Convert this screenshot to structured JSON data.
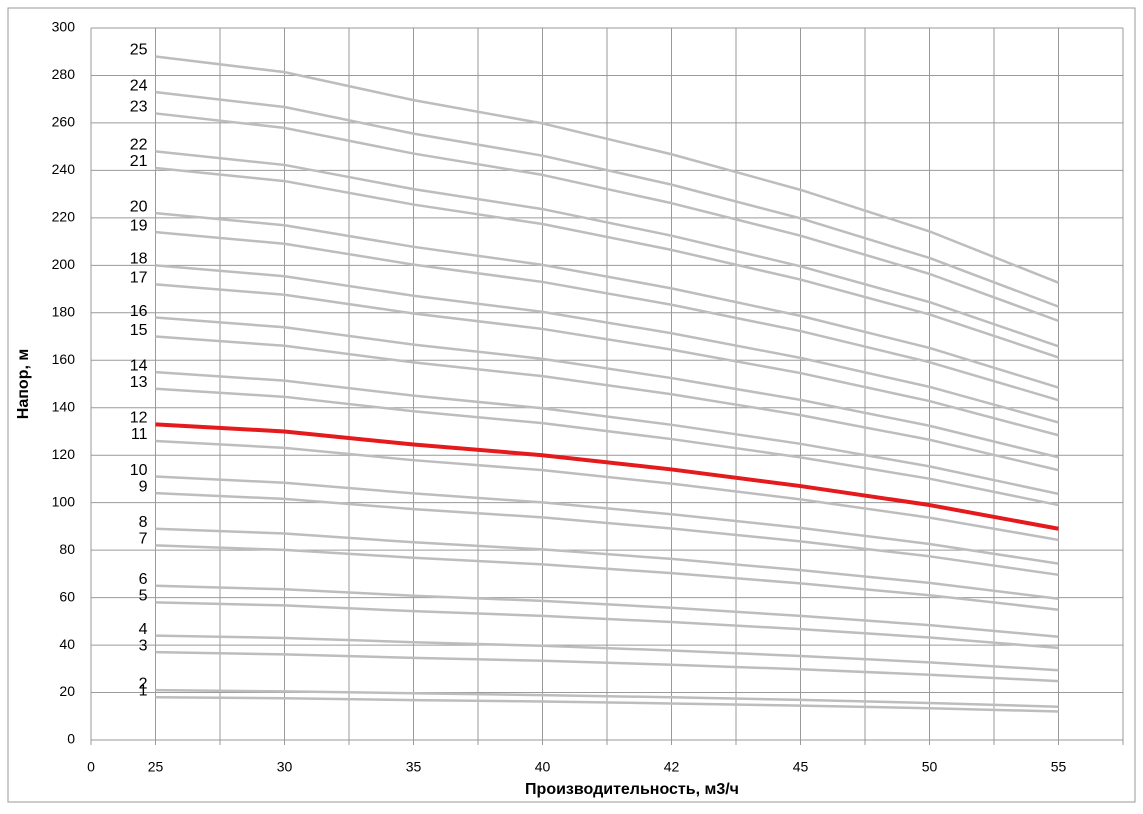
{
  "chart_data": {
    "type": "line",
    "xlabel": "Производительность, м3/ч",
    "ylabel": "Напор, м",
    "x": [
      1,
      3,
      5,
      7,
      9,
      11,
      13,
      15
    ],
    "xlim": [
      0,
      16
    ],
    "xticks": [
      0,
      {
        "value": 1,
        "label": "25"
      },
      {
        "value": 2,
        "label": null
      },
      {
        "value": 3,
        "label": "30"
      },
      {
        "value": 4,
        "label": null
      },
      {
        "value": 5,
        "label": "35"
      },
      {
        "value": 6,
        "label": null
      },
      {
        "value": 7,
        "label": "40"
      },
      {
        "value": 8,
        "label": null
      },
      {
        "value": 9,
        "label": "42"
      },
      {
        "value": 10,
        "label": null
      },
      {
        "value": 11,
        "label": "45"
      },
      {
        "value": 12,
        "label": null
      },
      {
        "value": 13,
        "label": "50"
      },
      {
        "value": 14,
        "label": null
      },
      {
        "value": 15,
        "label": "55"
      },
      {
        "value": 16,
        "label": null
      }
    ],
    "ylim": [
      0,
      300
    ],
    "yticks": [
      0,
      20,
      40,
      60,
      80,
      100,
      120,
      140,
      160,
      180,
      200,
      220,
      240,
      260,
      280,
      300
    ],
    "grid": true,
    "series": [
      {
        "name": "1",
        "color": "#bdbdbd",
        "values": [
          18,
          17.6,
          16.8,
          16.2,
          15.4,
          14.5,
          13.4,
          12
        ]
      },
      {
        "name": "2",
        "color": "#bdbdbd",
        "values": [
          21,
          20.5,
          19.7,
          18.9,
          18,
          16.9,
          15.6,
          14
        ]
      },
      {
        "name": "3",
        "color": "#bdbdbd",
        "values": [
          37,
          36.1,
          34.6,
          33.4,
          31.7,
          29.8,
          27.5,
          24.8
        ]
      },
      {
        "name": "4",
        "color": "#bdbdbd",
        "values": [
          44,
          43,
          41.2,
          39.7,
          37.7,
          35.4,
          32.7,
          29.4
        ]
      },
      {
        "name": "5",
        "color": "#bdbdbd",
        "values": [
          58,
          56.7,
          54.3,
          52.3,
          49.7,
          46.7,
          43.2,
          38.8
        ]
      },
      {
        "name": "6",
        "color": "#bdbdbd",
        "values": [
          65,
          63.5,
          60.8,
          58.6,
          55.7,
          52.3,
          48.4,
          43.5
        ]
      },
      {
        "name": "7",
        "color": "#bdbdbd",
        "values": [
          82,
          80.1,
          76.8,
          74,
          70.3,
          66,
          61,
          54.9
        ]
      },
      {
        "name": "8",
        "color": "#bdbdbd",
        "values": [
          89,
          87,
          83.3,
          80.3,
          76.3,
          71.6,
          66.2,
          59.5
        ]
      },
      {
        "name": "9",
        "color": "#bdbdbd",
        "values": [
          104,
          101.6,
          97.3,
          93.8,
          89.1,
          83.7,
          77.4,
          69.6
        ]
      },
      {
        "name": "10",
        "color": "#bdbdbd",
        "values": [
          111,
          108.4,
          103.9,
          100.1,
          95.1,
          89.4,
          82.6,
          74.3
        ]
      },
      {
        "name": "11",
        "color": "#bdbdbd",
        "values": [
          126,
          123.1,
          117.9,
          113.7,
          108,
          101.4,
          93.7,
          84.3
        ]
      },
      {
        "name": "12",
        "color": "#e41a1c",
        "values": [
          133,
          130,
          124.5,
          120,
          114,
          107,
          99,
          89
        ]
      },
      {
        "name": "13",
        "color": "#bdbdbd",
        "values": [
          148,
          144.6,
          138.5,
          133.5,
          126.8,
          119.1,
          110.1,
          99
        ]
      },
      {
        "name": "14",
        "color": "#bdbdbd",
        "values": [
          155,
          151.4,
          145.1,
          139.8,
          132.8,
          124.8,
          115.3,
          103.7
        ]
      },
      {
        "name": "15",
        "color": "#bdbdbd",
        "values": [
          170,
          166.1,
          159.1,
          153.3,
          145.7,
          136.9,
          126.5,
          113.7
        ]
      },
      {
        "name": "16",
        "color": "#bdbdbd",
        "values": [
          178,
          173.9,
          166.6,
          160.6,
          152.5,
          143.3,
          132.4,
          119.1
        ]
      },
      {
        "name": "17",
        "color": "#bdbdbd",
        "values": [
          192,
          187.6,
          179.7,
          173.2,
          164.5,
          154.6,
          142.8,
          128.4
        ]
      },
      {
        "name": "18",
        "color": "#bdbdbd",
        "values": [
          200,
          195.4,
          187.2,
          180.4,
          171.4,
          161,
          148.8,
          133.8
        ]
      },
      {
        "name": "19",
        "color": "#bdbdbd",
        "values": [
          214,
          209.1,
          200.3,
          193,
          183.4,
          172.3,
          159.2,
          143.2
        ]
      },
      {
        "name": "20",
        "color": "#bdbdbd",
        "values": [
          222,
          216.9,
          207.8,
          200.2,
          190.3,
          178.7,
          165.2,
          148.5
        ]
      },
      {
        "name": "21",
        "color": "#bdbdbd",
        "values": [
          241,
          235.5,
          225.6,
          217.4,
          206.5,
          194,
          179.3,
          161.2
        ]
      },
      {
        "name": "22",
        "color": "#bdbdbd",
        "values": [
          248,
          242.3,
          232.1,
          223.7,
          212.5,
          199.6,
          184.5,
          165.9
        ]
      },
      {
        "name": "23",
        "color": "#bdbdbd",
        "values": [
          264,
          257.9,
          247.1,
          238.1,
          226.2,
          212.5,
          196.4,
          176.6
        ]
      },
      {
        "name": "24",
        "color": "#bdbdbd",
        "values": [
          273,
          266.7,
          255.5,
          246.2,
          234,
          219.8,
          203.1,
          182.6
        ]
      },
      {
        "name": "25",
        "color": "#bdbdbd",
        "values": [
          288,
          281.4,
          269.6,
          259.8,
          246.8,
          231.8,
          214.3,
          192.7
        ]
      }
    ]
  }
}
